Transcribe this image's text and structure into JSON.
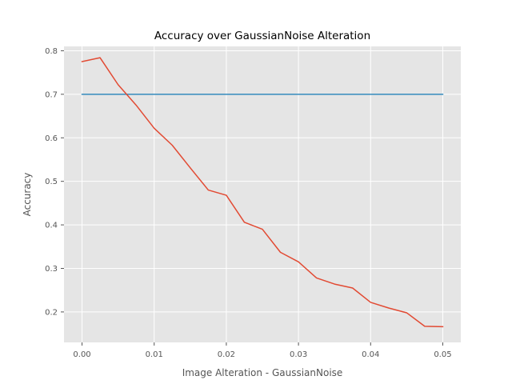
{
  "chart_data": {
    "type": "line",
    "title": "Accuracy over GaussianNoise Alteration",
    "xlabel": "Image Alteration - GaussianNoise",
    "ylabel": "Accuracy",
    "xlim": [
      -0.0025,
      0.0525
    ],
    "ylim": [
      0.13,
      0.81
    ],
    "xticks": [
      0.0,
      0.01,
      0.02,
      0.03,
      0.04,
      0.05
    ],
    "xtick_labels": [
      "0.00",
      "0.01",
      "0.02",
      "0.03",
      "0.04",
      "0.05"
    ],
    "yticks": [
      0.2,
      0.3,
      0.4,
      0.5,
      0.6,
      0.7,
      0.8
    ],
    "ytick_labels": [
      "0.2",
      "0.3",
      "0.4",
      "0.5",
      "0.6",
      "0.7",
      "0.8"
    ],
    "grid": true,
    "x": [
      0.0,
      0.0025,
      0.005,
      0.0075,
      0.01,
      0.0125,
      0.015,
      0.0175,
      0.02,
      0.0225,
      0.025,
      0.0275,
      0.03,
      0.0325,
      0.035,
      0.0375,
      0.04,
      0.0425,
      0.045,
      0.0475,
      0.05
    ],
    "series": [
      {
        "color": "#348abd",
        "values": [
          0.7,
          0.7,
          0.7,
          0.7,
          0.7,
          0.7,
          0.7,
          0.7,
          0.7,
          0.7,
          0.7,
          0.7,
          0.7,
          0.7,
          0.7,
          0.7,
          0.7,
          0.7,
          0.7,
          0.7,
          0.7
        ]
      },
      {
        "color": "#e24a33",
        "values": [
          0.775,
          0.784,
          0.722,
          0.675,
          0.622,
          0.583,
          0.531,
          0.48,
          0.468,
          0.406,
          0.39,
          0.337,
          0.315,
          0.278,
          0.264,
          0.255,
          0.222,
          0.209,
          0.198,
          0.167,
          0.166
        ]
      }
    ],
    "colors": {
      "plot_background": "#e5e5e5",
      "grid": "#ffffff",
      "tick": "#555555"
    }
  }
}
